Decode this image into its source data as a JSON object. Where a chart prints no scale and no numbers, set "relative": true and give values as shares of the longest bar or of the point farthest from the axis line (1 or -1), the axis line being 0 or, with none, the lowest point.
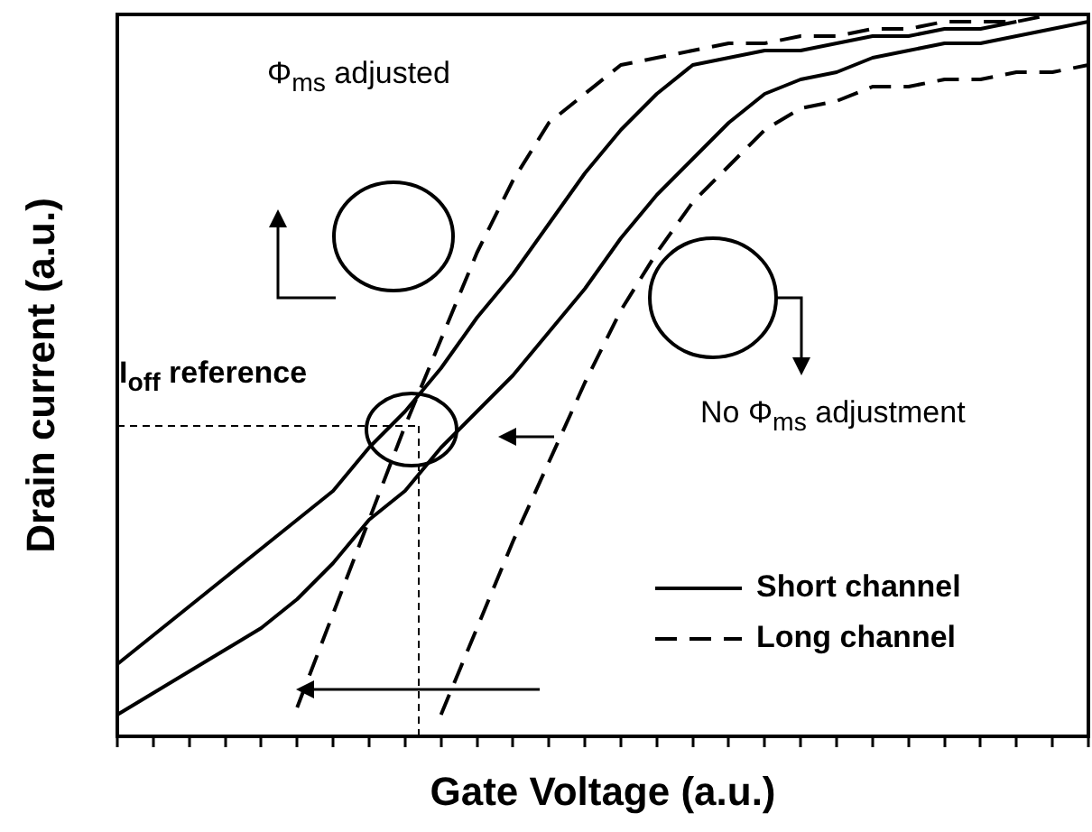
{
  "chart_data": {
    "type": "line",
    "relative": true,
    "xlabel": "Gate Voltage (a.u.)",
    "ylabel": "Drain current (a.u.)",
    "categories": [
      null,
      null,
      null,
      null,
      null,
      null,
      null,
      null,
      null,
      null,
      null,
      null,
      null,
      null,
      null,
      null,
      null,
      null,
      null,
      null,
      null,
      null,
      null,
      null,
      null,
      null,
      null,
      null
    ],
    "series": [
      {
        "name": "Short channel",
        "color": "#000000",
        "line_style": "solid",
        "values": [
          0.1,
          0.14,
          0.18,
          0.22,
          0.26,
          0.3,
          0.34,
          0.4,
          0.45,
          0.51,
          0.58,
          0.64,
          0.71,
          0.78,
          0.84,
          0.89,
          0.93,
          0.94,
          0.95,
          0.95,
          0.96,
          0.97,
          0.97,
          0.98,
          0.98,
          0.99,
          null,
          null
        ]
      },
      {
        "color": "#000000",
        "line_style": "solid",
        "values": [
          0.03,
          0.06,
          0.09,
          0.12,
          0.15,
          0.19,
          0.24,
          0.3,
          0.34,
          0.4,
          0.45,
          0.5,
          0.56,
          0.62,
          0.69,
          0.75,
          0.8,
          0.85,
          0.89,
          0.91,
          0.92,
          0.94,
          0.95,
          0.96,
          0.96,
          0.97,
          0.98,
          0.99
        ]
      },
      {
        "name": "Long channel",
        "color": "#000000",
        "line_style": "dashed",
        "values": [
          null,
          null,
          null,
          null,
          null,
          0.04,
          0.17,
          0.3,
          0.43,
          0.55,
          0.67,
          0.77,
          0.85,
          0.89,
          0.93,
          0.94,
          0.95,
          0.96,
          0.96,
          0.97,
          0.97,
          0.98,
          0.98,
          0.99,
          0.99,
          0.99,
          1.0,
          1.0
        ]
      },
      {
        "color": "#000000",
        "line_style": "dashed",
        "values": [
          null,
          null,
          null,
          null,
          null,
          null,
          null,
          null,
          null,
          0.03,
          0.15,
          0.27,
          0.38,
          0.49,
          0.59,
          0.67,
          0.74,
          0.79,
          0.84,
          0.87,
          0.88,
          0.9,
          0.9,
          0.91,
          0.91,
          0.92,
          0.92,
          0.93
        ]
      }
    ],
    "legend": "bottom right",
    "grid": false,
    "marker": "none",
    "annotations": [
      "Φ$_{ms}$ adjusted",
      "No Φ$_{ms}$ adjustment",
      "I$_{off}$ reference"
    ]
  }
}
